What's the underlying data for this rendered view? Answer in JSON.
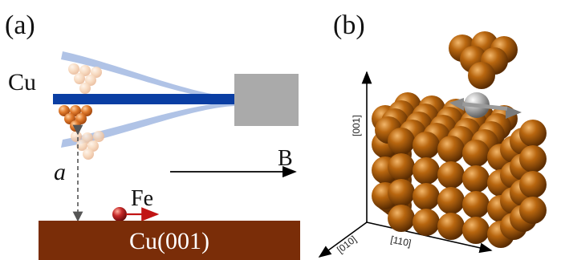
{
  "panel_a": {
    "label": "(a)",
    "tip_label": "Cu",
    "distance_label": "a",
    "field_label": "B",
    "adatom_label": "Fe",
    "substrate_label": "Cu(001)",
    "colors": {
      "cantilever": "#0a3ea3",
      "cantilever_deflected": "#a7bde3",
      "sensor_block": "#aaaaaa",
      "substrate": "#7a2d08",
      "substrate_text": "#ffffff",
      "tip_atoms": "#d06a1e",
      "tip_atoms_faded": "#f0c9aa",
      "adatom": "#b81d1d",
      "spin_arrow": "#c11414"
    }
  },
  "panel_b": {
    "label": "(b)",
    "axis_001": "[001]",
    "axis_010": "[010]",
    "axis_110": "[110]",
    "colors": {
      "cu_atom": "#9b5408",
      "fe_atom": "#a5a5a5",
      "spin_arrow": "#8a8a8a"
    }
  }
}
